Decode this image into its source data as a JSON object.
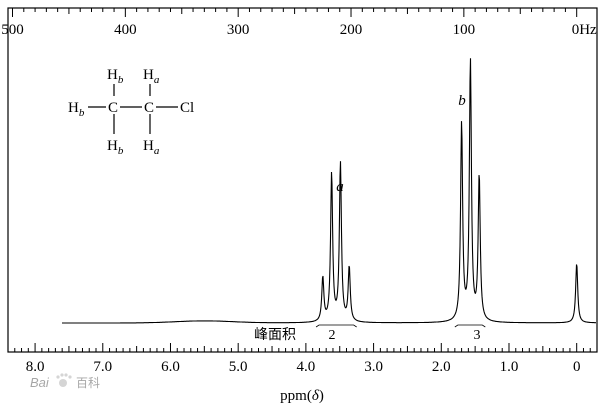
{
  "chart_data": {
    "type": "line",
    "top_axis": {
      "ticks": [
        "500",
        "400",
        "300",
        "200",
        "100",
        "0Hz"
      ],
      "values": [
        500,
        400,
        300,
        200,
        100,
        0
      ]
    },
    "bottom_axis": {
      "ticks": [
        "8.0",
        "7.0",
        "6.0",
        "5.0",
        "4.0",
        "3.0",
        "2.0",
        "1.0",
        "0"
      ],
      "values": [
        8.0,
        7.0,
        6.0,
        5.0,
        4.0,
        3.0,
        2.0,
        1.0,
        0.0
      ],
      "xlabel_prefix": "ppm(",
      "xlabel_symbol": "δ",
      "xlabel_suffix": ")"
    },
    "xlim": [
      8.4,
      -0.3
    ],
    "hz_per_ppm": 60,
    "peaks": {
      "a": {
        "label": "a",
        "multiplet": [
          {
            "x": 3.75,
            "h": 0.17
          },
          {
            "x": 3.62,
            "h": 0.57
          },
          {
            "x": 3.49,
            "h": 0.61
          },
          {
            "x": 3.36,
            "h": 0.21
          }
        ]
      },
      "b": {
        "label": "b",
        "multiplet": [
          {
            "x": 1.7,
            "h": 0.76
          },
          {
            "x": 1.57,
            "h": 1.0
          },
          {
            "x": 1.44,
            "h": 0.56
          }
        ]
      },
      "tms": {
        "multiplet": [
          {
            "x": 0.0,
            "h": 0.23
          }
        ]
      }
    },
    "integration": {
      "label": "峰面积",
      "a": "2",
      "b": "3"
    },
    "molecule": {
      "H": "H",
      "C": "C",
      "Cl": "Cl",
      "sub_a": "a",
      "sub_b": "b"
    }
  },
  "watermark": {
    "brand": "Bai",
    "brand2": "百科"
  }
}
